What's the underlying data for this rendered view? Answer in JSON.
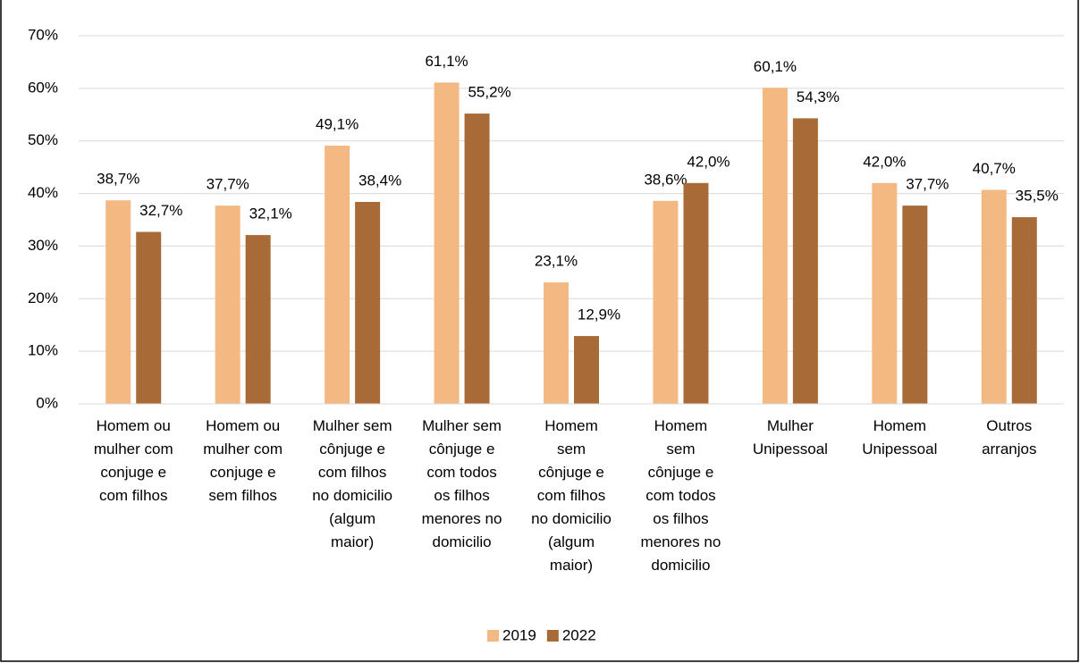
{
  "chart_data": {
    "type": "bar",
    "categories": [
      "Homem ou\nmulher com\nconjuge e\ncom filhos",
      "Homem ou\nmulher com\nconjuge e\nsem filhos",
      "Mulher sem\ncônjuge e\ncom filhos\nno domicilio\n(algum\nmaior)",
      "Mulher sem\ncônjuge e\ncom todos\nos filhos\nmenores no\ndomicilio",
      "Homem\nsem\ncônjuge e\ncom filhos\nno domicilio\n(algum\nmaior)",
      "Homem\nsem\ncônjuge e\ncom todos\nos filhos\nmenores no\ndomicilio",
      "Mulher\nUnipessoal",
      "Homem\nUnipessoal",
      "Outros\narranjos"
    ],
    "series": [
      {
        "name": "2019",
        "color": "#f4b983",
        "values": [
          38.7,
          37.7,
          49.1,
          61.1,
          23.1,
          38.6,
          60.1,
          42.0,
          40.7
        ],
        "value_labels": [
          "38,7%",
          "37,7%",
          "49,1%",
          "61,1%",
          "23,1%",
          "38,6%",
          "60,1%",
          "42,0%",
          "40,7%"
        ]
      },
      {
        "name": "2022",
        "color": "#a86b38",
        "values": [
          32.7,
          32.1,
          38.4,
          55.2,
          12.9,
          42.0,
          54.3,
          37.7,
          35.5
        ],
        "value_labels": [
          "32,7%",
          "32,1%",
          "38,4%",
          "55,2%",
          "12,9%",
          "42,0%",
          "54,3%",
          "37,7%",
          "35,5%"
        ]
      }
    ],
    "ylim": [
      0,
      70
    ],
    "yticks": [
      {
        "value": 0,
        "label": "0%"
      },
      {
        "value": 10,
        "label": "10%"
      },
      {
        "value": 20,
        "label": "20%"
      },
      {
        "value": 30,
        "label": "30%"
      },
      {
        "value": 40,
        "label": "40%"
      },
      {
        "value": 50,
        "label": "50%"
      },
      {
        "value": 60,
        "label": "60%"
      },
      {
        "value": 70,
        "label": "70%"
      }
    ],
    "grid": true,
    "legend": "bottom"
  }
}
